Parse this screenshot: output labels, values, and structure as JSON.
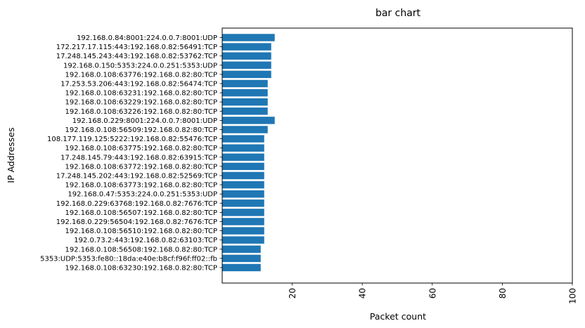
{
  "chart_data": {
    "type": "bar",
    "orientation": "horizontal",
    "title": "bar chart",
    "xlabel": "Packet count",
    "ylabel": "IP Addresses",
    "xlim": [
      0,
      100
    ],
    "xticks": [
      "20",
      "40",
      "60",
      "80",
      "100"
    ],
    "xtick_values": [
      20,
      40,
      60,
      80,
      100
    ],
    "grid": false,
    "bar_color": "#1f77b4",
    "categories": [
      "192.168.0.84:8001:224.0.0.7:8001:UDP",
      "172.217.17.115:443:192.168.0.82:56491:TCP",
      "17.248.145.243:443:192.168.0.82:53762:TCP",
      "192.168.0.150:5353:224.0.0.251:5353:UDP",
      "192.168.0.108:63776:192.168.0.82:80:TCP",
      "17.253.53.206:443:192.168.0.82:56474:TCP",
      "192.168.0.108:63231:192.168.0.82:80:TCP",
      "192.168.0.108:63229:192.168.0.82:80:TCP",
      "192.168.0.108:63226:192.168.0.82:80:TCP",
      "192.168.0.229:8001:224.0.0.7:8001:UDP",
      "192.168.0.108:56509:192.168.0.82:80:TCP",
      "108.177.119.125:5222:192.168.0.82:55476:TCP",
      "192.168.0.108:63775:192.168.0.82:80:TCP",
      "17.248.145.79:443:192.168.0.82:63915:TCP",
      "192.168.0.108:63772:192.168.0.82:80:TCP",
      "17.248.145.202:443:192.168.0.82:52569:TCP",
      "192.168.0.108:63773:192.168.0.82:80:TCP",
      "192.168.0.47:5353:224.0.0.251:5353:UDP",
      "192.168.0.229:63768:192.168.0.82:7676:TCP",
      "192.168.0.108:56507:192.168.0.82:80:TCP",
      "192.168.0.229:56504:192.168.0.82:7676:TCP",
      "192.168.0.108:56510:192.168.0.82:80:TCP",
      "192.0.73.2:443:192.168.0.82:63103:TCP",
      "192.168.0.108:56508:192.168.0.82:80:TCP",
      "5353:UDP:5353:fe80::18da:e40e:b8cf:f96f:ff02::fb",
      "192.168.0.108:63230:192.168.0.82:80:TCP"
    ],
    "values": [
      15,
      14,
      14,
      14,
      14,
      13,
      13,
      13,
      13,
      15,
      13,
      12,
      12,
      12,
      12,
      12,
      12,
      12,
      12,
      12,
      12,
      12,
      12,
      11,
      11,
      11
    ]
  }
}
